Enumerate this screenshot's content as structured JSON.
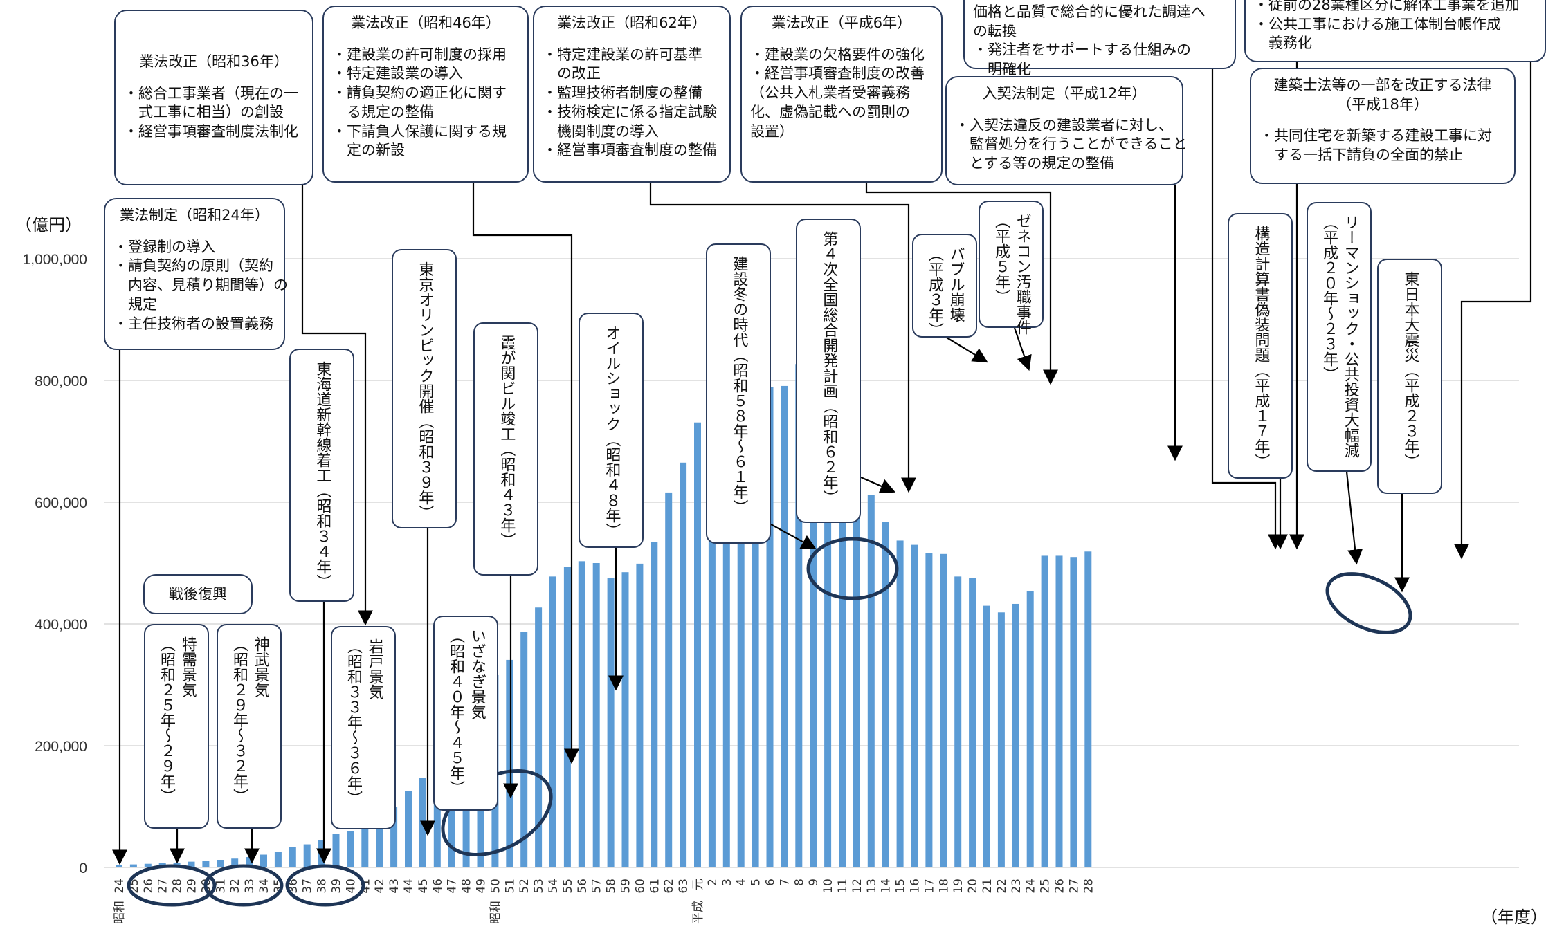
{
  "chart_data": {
    "type": "bar",
    "unit_label": "（億円）",
    "x_unit_label": "（年度）",
    "ylim": [
      0,
      1000000
    ],
    "yticks": [
      "0",
      "200,000",
      "400,000",
      "600,000",
      "800,000",
      "1,000,000"
    ],
    "grid": true,
    "bar_color": "#5b9bd5",
    "categories": [
      "24",
      "25",
      "26",
      "27",
      "28",
      "29",
      "30",
      "31",
      "32",
      "33",
      "34",
      "35",
      "36",
      "37",
      "38",
      "39",
      "40",
      "41",
      "42",
      "43",
      "44",
      "45",
      "46",
      "47",
      "48",
      "49",
      "50",
      "51",
      "52",
      "53",
      "54",
      "55",
      "56",
      "57",
      "58",
      "59",
      "60",
      "61",
      "62",
      "63",
      "元",
      "2",
      "3",
      "4",
      "5",
      "6",
      "7",
      "8",
      "9",
      "10",
      "11",
      "12",
      "13",
      "14",
      "15",
      "16",
      "17",
      "18",
      "19",
      "20",
      "21",
      "22",
      "23",
      "24",
      "25",
      "26",
      "27",
      "28"
    ],
    "era_labels": [
      {
        "at": "24",
        "text": "昭和"
      },
      {
        "at": "50",
        "text": "昭和"
      },
      {
        "at": "元",
        "text": "平成"
      }
    ],
    "values": [
      4000,
      5000,
      6000,
      7000,
      8000,
      9500,
      11000,
      12500,
      14500,
      17000,
      21000,
      26000,
      33000,
      38000,
      45000,
      55000,
      60000,
      68000,
      84000,
      100000,
      125000,
      147000,
      166000,
      215000,
      287000,
      294000,
      316000,
      341000,
      387000,
      427000,
      478000,
      494000,
      503000,
      500000,
      476000,
      485000,
      499000,
      535000,
      616000,
      665000,
      731000,
      814000,
      824000,
      838000,
      818000,
      789000,
      791000,
      827000,
      752000,
      715000,
      683000,
      662000,
      612000,
      568000,
      537000,
      530000,
      516000,
      515000,
      478000,
      476000,
      430000,
      419000,
      433000,
      454000,
      512000,
      512000,
      510000,
      519000
    ]
  },
  "annotations": {
    "sengo": "戦後復興",
    "tokuju": "特需景気\n（昭和２５年～２９年）",
    "jinmu": "神武景気\n（昭和２９年～３２年）",
    "iwato": "岩戸景気\n（昭和３３年～３６年）",
    "tokaido": "東海道新幹線着工（昭和３４年）",
    "olympic": "東京オリンピック開催（昭和３９年）",
    "izanagi": "いざなぎ景気\n（昭和４０年～４５年）",
    "kasumigaseki": "霞が関ビル竣工（昭和４３年）",
    "oil": "オイルショック（昭和４８年）",
    "kensetsufuyu": "建設冬の時代（昭和５８年～６１年）",
    "zenso": "第４次全国総合開発計画（昭和６２年）",
    "bubble": "バブル崩壊\n（平成３年）",
    "zenecon": "ゼネコン汚職事件\n（平成５年）",
    "kozo": "構造計算書偽装問題（平成１７年）",
    "lehman": "リーマンショック・公共投資大幅減\n（平成２０年～２３年）",
    "shinsai": "東日本大震災（平成２３年）",
    "s24_title": "業法制定（昭和24年）",
    "s24_lines": [
      "・登録制の導入",
      "・請負契約の原則（契約",
      "　内容、見積り期間等）の",
      "　規定",
      "・主任技術者の設置義務"
    ],
    "s36_title": "業法改正（昭和36年）",
    "s36_lines": [
      "・総合工事業者（現在の一",
      "　式工事に相当）の創設",
      "・経営事項審査制度法制化"
    ],
    "s46_title": "業法改正（昭和46年）",
    "s46_lines": [
      "・建設業の許可制度の採用",
      "・特定建設業の導入",
      "・請負契約の適正化に関す",
      "　る規定の整備",
      "・下請負人保護に関する規",
      "　定の新設"
    ],
    "s62_title": "業法改正（昭和62年）",
    "s62_lines": [
      "・特定建設業の許可基準",
      "　の改正",
      "・監理技術者制度の整備",
      "・技術検定に係る指定試験",
      "　機関制度の導入",
      "・経営事項審査制度の整備"
    ],
    "h6_title": "業法改正（平成6年）",
    "h6_lines": [
      "・建設業の欠格要件の強化",
      "・経営事項審査制度の改善",
      "（公共入札業者受審義務",
      "化、虚偽記載への罰則の",
      "設置）"
    ],
    "top1_lines": [
      "価格と品質で総合的に優れた調達へ",
      "の転換",
      "・発注者をサポートする仕組みの",
      "　明確化"
    ],
    "h12_title": "入契法制定（平成12年）",
    "h12_lines": [
      "・入契法違反の建設業者に対し、",
      "　監督処分を行うことができること",
      "　とする等の規定の整備"
    ],
    "top2_lines": [
      "・従前の28業種区分に解体工事業を追加",
      "・公共工事における施工体制台帳作成",
      "　義務化"
    ],
    "h18_title": "建築士法等の一部を改正する法律\n（平成18年）",
    "h18_lines": [
      "・共同住宅を新築する建設工事に対",
      "　する一括下請負の全面的禁止"
    ]
  }
}
